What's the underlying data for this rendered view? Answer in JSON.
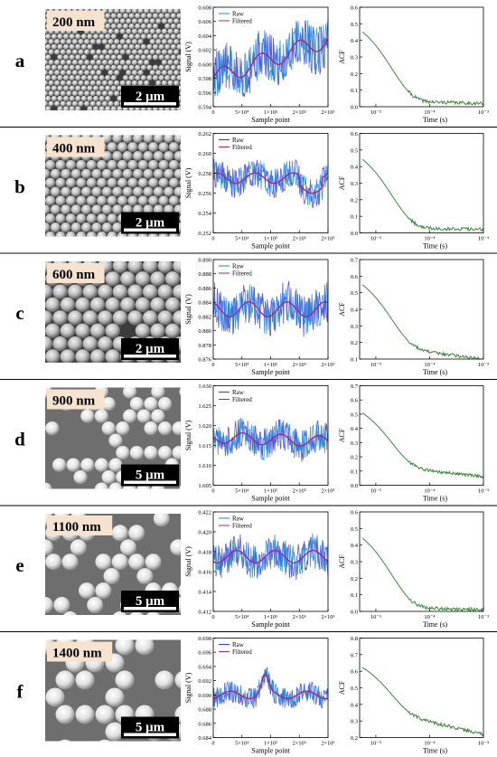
{
  "figure": {
    "colors": {
      "raw_a": "#3b3bd6",
      "raw_b": "#1f86d9",
      "filtered": "#9b2a8a",
      "acf": "#3a8a3a",
      "separator": "#000000"
    }
  },
  "panels": [
    {
      "letter": "a",
      "size_label": "200 nm",
      "scale_label": "2 μm",
      "image_style": "dense-small",
      "signal": {
        "ylim": [
          0.594,
          0.608
        ],
        "yticks": [
          "0.594",
          "0.596",
          "0.598",
          "0.600",
          "0.602",
          "0.604",
          "0.606",
          "0.608"
        ],
        "start": 0.598,
        "end": 0.6035,
        "spread": 0.0035,
        "step_at": null,
        "step_to": null,
        "bump": null
      },
      "acf": {
        "ylim": [
          0.0,
          0.6
        ],
        "yticks": [
          "0.0",
          "0.1",
          "0.2",
          "0.3",
          "0.4",
          "0.5",
          "0.6"
        ],
        "start": 0.57,
        "plateau": 0.03,
        "tail": 0.02
      }
    },
    {
      "letter": "b",
      "size_label": "400 nm",
      "scale_label": "2 μm",
      "image_style": "hex-medium",
      "signal": {
        "ylim": [
          0.252,
          0.262
        ],
        "yticks": [
          "0.252",
          "0.254",
          "0.256",
          "0.258",
          "0.260",
          "0.262"
        ],
        "start": 0.2575,
        "end": 0.2575,
        "spread": 0.0015,
        "step_at": 150000,
        "step_to": 0.2565,
        "bump": null
      },
      "acf": {
        "ylim": [
          0.0,
          0.6
        ],
        "yticks": [
          "0.0",
          "0.1",
          "0.2",
          "0.3",
          "0.4",
          "0.5",
          "0.6"
        ],
        "start": 0.56,
        "plateau": 0.03,
        "tail": 0.02
      }
    },
    {
      "letter": "c",
      "size_label": "600 nm",
      "scale_label": "2 μm",
      "image_style": "hex-large",
      "signal": {
        "ylim": [
          0.876,
          0.89
        ],
        "yticks": [
          "0.876",
          "0.878",
          "0.880",
          "0.882",
          "0.884",
          "0.886",
          "0.888",
          "0.890"
        ],
        "start": 0.883,
        "end": 0.883,
        "spread": 0.003,
        "step_at": null,
        "step_to": null,
        "bump": null
      },
      "acf": {
        "ylim": [
          0.1,
          0.7
        ],
        "yticks": [
          "0.1",
          "0.2",
          "0.3",
          "0.4",
          "0.5",
          "0.6",
          "0.7"
        ],
        "start": 0.66,
        "plateau": 0.15,
        "tail": 0.1
      }
    },
    {
      "letter": "d",
      "size_label": "900 nm",
      "scale_label": "5 μm",
      "image_style": "sparse",
      "signal": {
        "ylim": [
          1.605,
          1.63
        ],
        "yticks": [
          "1.605",
          "1.610",
          "1.615",
          "1.620",
          "1.625",
          "1.630"
        ],
        "start": 1.617,
        "end": 1.616,
        "spread": 0.004,
        "step_at": null,
        "step_to": null,
        "bump": null
      },
      "acf": {
        "ylim": [
          0.0,
          0.7
        ],
        "yticks": [
          "0.0",
          "0.1",
          "0.2",
          "0.3",
          "0.4",
          "0.5",
          "0.6",
          "0.7"
        ],
        "start": 0.62,
        "plateau": 0.11,
        "tail": 0.06
      }
    },
    {
      "letter": "e",
      "size_label": "1100 nm",
      "scale_label": "5 μm",
      "image_style": "sparse-large",
      "signal": {
        "ylim": [
          0.412,
          0.422
        ],
        "yticks": [
          "0.412",
          "0.414",
          "0.416",
          "0.418",
          "0.420",
          "0.422"
        ],
        "start": 0.4175,
        "end": 0.4175,
        "spread": 0.0018,
        "step_at": null,
        "step_to": null,
        "bump": null
      },
      "acf": {
        "ylim": [
          0.0,
          0.6
        ],
        "yticks": [
          "0.0",
          "0.1",
          "0.2",
          "0.3",
          "0.4",
          "0.5",
          "0.6"
        ],
        "start": 0.56,
        "plateau": 0.02,
        "tail": 0.01
      }
    },
    {
      "letter": "f",
      "size_label": "1400 nm",
      "scale_label": "5 μm",
      "image_style": "sparse-xl",
      "signal": {
        "ylim": [
          0.684,
          0.698
        ],
        "yticks": [
          "0.684",
          "0.686",
          "0.688",
          "0.690",
          "0.692",
          "0.694",
          "0.696",
          "0.698"
        ],
        "start": 0.69,
        "end": 0.69,
        "spread": 0.0015,
        "step_at": null,
        "step_to": null,
        "bump": 90000
      },
      "acf": {
        "ylim": [
          0.2,
          0.8
        ],
        "yticks": [
          "0.2",
          "0.3",
          "0.4",
          "0.5",
          "0.6",
          "0.7",
          "0.8"
        ],
        "start": 0.71,
        "plateau": 0.31,
        "tail": 0.22
      }
    }
  ],
  "chart_data": [
    {
      "type": "line",
      "xlabel": "Sample point",
      "ylabel": "Signal (V)",
      "xlim": [
        0,
        200000
      ],
      "xtick_values": [
        0,
        50000,
        100000,
        150000,
        200000
      ],
      "xticks": [
        "0",
        "5×10⁴",
        "1×10⁵",
        "2×10⁵",
        "2×10⁵"
      ],
      "legend": [
        "Raw",
        "Filtered"
      ],
      "legend_position": "top-left",
      "series": [
        {
          "name": "Raw"
        },
        {
          "name": "Filtered"
        }
      ],
      "note": ""
    },
    {
      "type": "line",
      "xlabel": "Time (s)",
      "ylabel": "ACF",
      "xscale": "log",
      "xlim": [
        5e-06,
        0.001
      ],
      "xticks": [
        "10⁻⁵",
        "10⁻⁴",
        "10⁻³"
      ],
      "xtick_values": [
        1e-05,
        0.0001,
        0.001
      ]
    }
  ]
}
